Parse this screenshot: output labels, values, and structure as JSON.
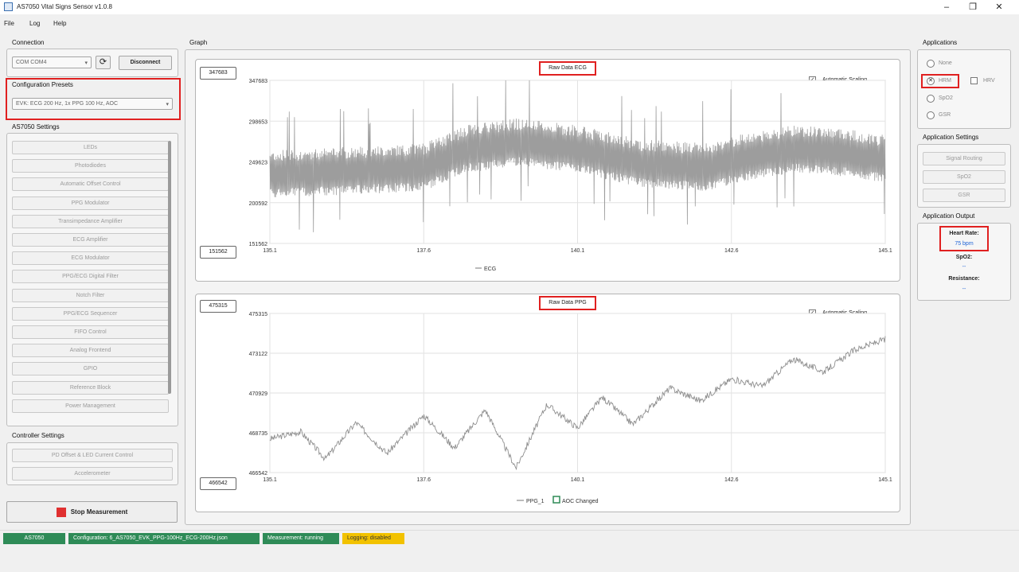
{
  "window": {
    "title": "AS7050 Vital Signs Sensor v1.0.8",
    "minimize": "‒",
    "maximize": "❐",
    "close": "✕"
  },
  "menu": [
    "File",
    "Log",
    "Help"
  ],
  "connection": {
    "label": "Connection",
    "port_value": "COM COM4",
    "disconnect_label": "Disconnect"
  },
  "presets": {
    "label": "Configuration Presets",
    "value": "EVK: ECG 200 Hz, 1x PPG 100 Hz, AOC"
  },
  "settings": {
    "label": "AS7050 Settings",
    "items": [
      "LEDs",
      "Photodiodes",
      "Automatic Offset Control",
      "PPG Modulator",
      "Transimpedance Amplifier",
      "ECG Amplifier",
      "ECG Modulator",
      "PPG/ECG Digital Filter",
      "Notch Filter",
      "PPG/ECG Sequencer",
      "FIFO Control",
      "Analog Frontend",
      "GPIO",
      "Reference Block",
      "Power Management"
    ]
  },
  "controller": {
    "label": "Controller Settings",
    "items": [
      "PD Offset & LED Current Control",
      "Accelerometer"
    ]
  },
  "stop_button": {
    "label": "Stop Measurement"
  },
  "graph": {
    "label": "Graph",
    "ecg": {
      "title": "Raw Data ECG",
      "max_box": "347683",
      "min_box": "151562",
      "auto_scaling": "Automatic Scaling",
      "y_ticks": [
        "347683",
        "298653",
        "249623",
        "200592",
        "151562"
      ],
      "x_ticks": [
        "135.1",
        "137.6",
        "140.1",
        "142.6",
        "145.1"
      ],
      "legend": "ECG"
    },
    "ppg": {
      "title": "Raw Data PPG",
      "max_box": "475315",
      "min_box": "466542",
      "auto_scaling": "Automatic Scaling",
      "y_ticks": [
        "475315",
        "473122",
        "470929",
        "468735",
        "466542"
      ],
      "x_ticks": [
        "135.1",
        "137.6",
        "140.1",
        "142.6",
        "145.1"
      ],
      "legend_ppg": "PPG_1",
      "legend_aoc": "AOC Changed"
    }
  },
  "applications": {
    "label": "Applications",
    "options": [
      "None",
      "HRM",
      "SpO2",
      "GSR"
    ],
    "hrv_label": "HRV",
    "selected": "HRM"
  },
  "app_settings": {
    "label": "Application Settings",
    "items": [
      "Signal Routing",
      "SpO2",
      "GSR"
    ]
  },
  "app_output": {
    "label": "Application Output",
    "heart_rate_label": "Heart Rate:",
    "heart_rate_value": "75 bpm",
    "spo2_label": "SpO2:",
    "spo2_value": "--",
    "resistance_label": "Resistance:",
    "resistance_value": "--"
  },
  "status": {
    "device": "AS7050",
    "configuration": "Configuration: 6_AS7050_EVK_PPG-100Hz_ECG-200Hz.json",
    "measurement": "Measurement: running",
    "logging": "Logging: disabled"
  },
  "colors": {
    "status_green": "#2e8b57",
    "logging_yellow": "#f2c200",
    "highlight_red": "#e02020",
    "value_blue": "#1e63d6",
    "stop_red": "#e03030"
  },
  "chart_data": [
    {
      "type": "line",
      "title": "Raw Data ECG",
      "x_range": [
        135.1,
        145.1
      ],
      "y_range": [
        151562,
        347683
      ],
      "series": [
        {
          "name": "ECG",
          "envelope_center": [
            [
              135.1,
              232000
            ],
            [
              136.5,
              236000
            ],
            [
              137.6,
              240000
            ],
            [
              138.3,
              262000
            ],
            [
              139.1,
              270000
            ],
            [
              140.1,
              262000
            ],
            [
              141.1,
              245000
            ],
            [
              142.2,
              240000
            ],
            [
              142.8,
              252000
            ],
            [
              143.6,
              262000
            ],
            [
              144.4,
              258000
            ],
            [
              145.1,
              250000
            ]
          ]
        }
      ],
      "grid": true,
      "legend": "bottom"
    },
    {
      "type": "line",
      "title": "Raw Data PPG",
      "x_range": [
        135.1,
        145.1
      ],
      "y_range": [
        466542,
        475315
      ],
      "series": [
        {
          "name": "PPG_1",
          "points": [
            [
              135.1,
              468400
            ],
            [
              135.6,
              468800
            ],
            [
              136.0,
              467300
            ],
            [
              136.5,
              469300
            ],
            [
              137.0,
              467600
            ],
            [
              137.6,
              469700
            ],
            [
              138.1,
              467900
            ],
            [
              138.6,
              470000
            ],
            [
              139.1,
              466800
            ],
            [
              139.6,
              470300
            ],
            [
              140.1,
              469000
            ],
            [
              140.5,
              470700
            ],
            [
              141.0,
              469200
            ],
            [
              141.6,
              471200
            ],
            [
              142.1,
              470500
            ],
            [
              142.6,
              471700
            ],
            [
              143.1,
              471300
            ],
            [
              143.6,
              472800
            ],
            [
              144.1,
              472100
            ],
            [
              144.6,
              473300
            ],
            [
              145.1,
              473900
            ]
          ]
        }
      ],
      "grid": true,
      "legend": "bottom"
    }
  ]
}
